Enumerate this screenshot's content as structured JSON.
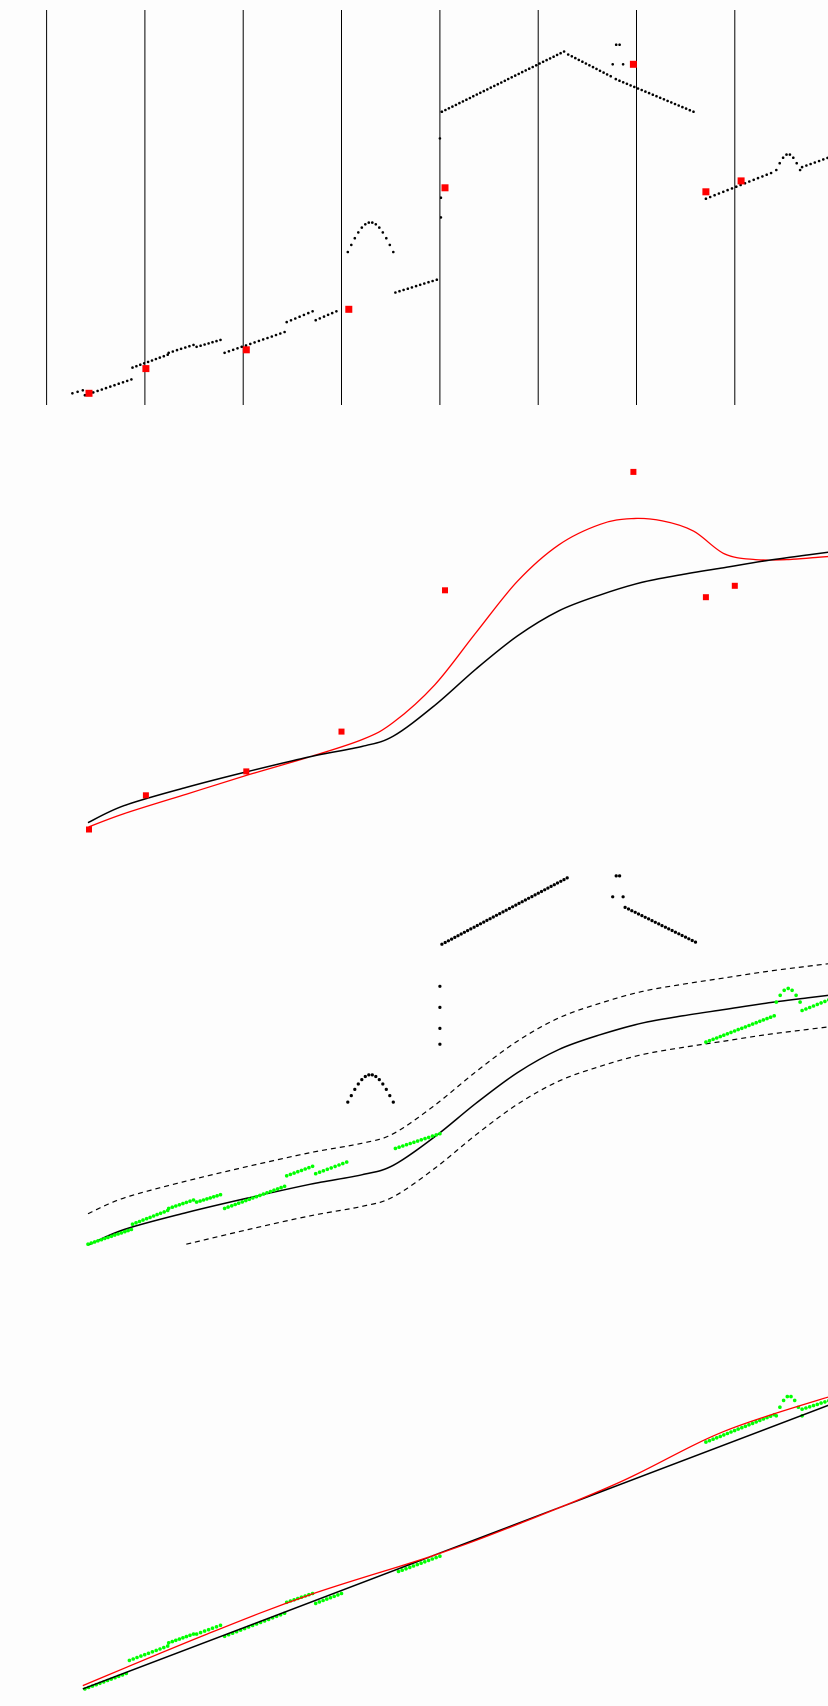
{
  "chart_data": [
    {
      "type": "scatter",
      "xlim": [
        0,
        800
      ],
      "ylim": [
        -10,
        400
      ],
      "title": "",
      "xlabel": "",
      "ylabel": "",
      "grid": "vertical lines",
      "colors": {
        "points": "#000000",
        "knots": "#ff0000",
        "grid": "#000000"
      },
      "vlines": [
        45,
        140,
        235,
        330,
        425,
        520,
        615,
        710,
        805
      ],
      "segments": [
        {
          "x0": 70,
          "y0": 12,
          "x1": 80,
          "y1": 15,
          "n": 3
        },
        {
          "x0": 82,
          "y0": 10,
          "x1": 127,
          "y1": 26,
          "n": 12
        },
        {
          "x0": 128,
          "y0": 38,
          "x1": 162,
          "y1": 51,
          "n": 10
        },
        {
          "x0": 163,
          "y0": 53,
          "x1": 187,
          "y1": 61,
          "n": 7
        },
        {
          "x0": 190,
          "y0": 59,
          "x1": 213,
          "y1": 66,
          "n": 7
        },
        {
          "x0": 217,
          "y0": 53,
          "x1": 275,
          "y1": 74,
          "n": 15
        },
        {
          "x0": 277,
          "y0": 84,
          "x1": 302,
          "y1": 95,
          "n": 7
        },
        {
          "x0": 305,
          "y0": 86,
          "x1": 325,
          "y1": 95,
          "n": 6
        },
        {
          "x0": 382,
          "y0": 114,
          "x1": 422,
          "y1": 127,
          "n": 11
        },
        {
          "x0": 427,
          "y0": 297,
          "x1": 545,
          "y1": 358,
          "n": 36
        },
        {
          "x0": 549,
          "y0": 355,
          "x1": 590,
          "y1": 333,
          "n": 13
        },
        {
          "x0": 595,
          "y0": 330,
          "x1": 670,
          "y1": 297,
          "n": 22
        },
        {
          "x0": 682,
          "y0": 209,
          "x1": 745,
          "y1": 235,
          "n": 16
        },
        {
          "x0": 775,
          "y0": 241,
          "x1": 820,
          "y1": 258,
          "n": 12
        }
      ],
      "bumps": [
        {
          "x0": 336,
          "x1": 380,
          "base": 155,
          "peak": 185,
          "n": 14
        },
        {
          "x0": 750,
          "x1": 773,
          "base": 238,
          "peak": 254,
          "n": 8
        },
        {
          "x0": 592,
          "x1": 602,
          "base": 345,
          "peak": 368,
          "n": 4
        }
      ],
      "extra_points": [
        {
          "x": 425,
          "y": 270
        },
        {
          "x": 426,
          "y": 210
        },
        {
          "x": 426,
          "y": 190
        }
      ],
      "knots": [
        {
          "x": 86,
          "y": 12
        },
        {
          "x": 141,
          "y": 37
        },
        {
          "x": 238,
          "y": 56
        },
        {
          "x": 337,
          "y": 97
        },
        {
          "x": 430,
          "y": 220
        },
        {
          "x": 612,
          "y": 345
        },
        {
          "x": 682,
          "y": 216
        },
        {
          "x": 716,
          "y": 227
        },
        {
          "x": 813,
          "y": 251
        }
      ]
    },
    {
      "type": "line",
      "xlim": [
        0,
        800
      ],
      "ylim": [
        0,
        360
      ],
      "title": "",
      "xlabel": "",
      "ylabel": "",
      "colors": {
        "fit": "#ff0000",
        "smooth": "#000000",
        "knots": "#ff0000"
      },
      "knots": [
        {
          "x": 86,
          "y": 18
        },
        {
          "x": 141,
          "y": 48
        },
        {
          "x": 238,
          "y": 69
        },
        {
          "x": 330,
          "y": 104
        },
        {
          "x": 430,
          "y": 228
        },
        {
          "x": 612,
          "y": 332
        },
        {
          "x": 682,
          "y": 222
        },
        {
          "x": 710,
          "y": 232
        },
        {
          "x": 806,
          "y": 260
        }
      ],
      "series": [
        {
          "x": [
            85,
            120,
            180,
            240,
            300,
            350,
            380,
            420,
            460,
            500,
            540,
            580,
            610,
            640,
            670,
            700,
            730,
            760,
            790,
            805
          ],
          "y": [
            20,
            32,
            49,
            66,
            82,
            97,
            112,
            145,
            191,
            236,
            268,
            286,
            291,
            289,
            280,
            260,
            255,
            255,
            257,
            258
          ]
        },
        {
          "x": [
            85,
            120,
            180,
            240,
            300,
            350,
            380,
            420,
            460,
            500,
            540,
            580,
            620,
            660,
            700,
            740,
            780,
            805
          ],
          "y": [
            24,
            39,
            55,
            69,
            82,
            91,
            100,
            127,
            159,
            188,
            210,
            224,
            235,
            242,
            248,
            254,
            259,
            262
          ]
        }
      ]
    },
    {
      "type": "scatter",
      "xlim": [
        0,
        800
      ],
      "ylim": [
        -10,
        370
      ],
      "title": "",
      "xlabel": "",
      "ylabel": "",
      "colors": {
        "inliers": "#00ff00",
        "outliers": "#000000",
        "curve": "#000000",
        "band": "#000000"
      },
      "band_offset": 30,
      "band_lower_start": 160,
      "curve": {
        "x": [
          85,
          120,
          180,
          240,
          300,
          350,
          380,
          420,
          460,
          500,
          540,
          580,
          620,
          660,
          700,
          740,
          780,
          805
        ],
        "y": [
          4,
          19,
          35,
          49,
          62,
          71,
          80,
          107,
          139,
          168,
          190,
          204,
          215,
          222,
          228,
          234,
          239,
          242
        ]
      },
      "inlier_segments": [
        {
          "x0": 85,
          "y0": 5,
          "x1": 127,
          "y1": 19,
          "n": 14
        },
        {
          "x0": 128,
          "y0": 24,
          "x1": 162,
          "y1": 37,
          "n": 11
        },
        {
          "x0": 163,
          "y0": 39,
          "x1": 187,
          "y1": 47,
          "n": 8
        },
        {
          "x0": 190,
          "y0": 45,
          "x1": 213,
          "y1": 52,
          "n": 8
        },
        {
          "x0": 217,
          "y0": 39,
          "x1": 275,
          "y1": 60,
          "n": 18
        },
        {
          "x0": 277,
          "y0": 70,
          "x1": 302,
          "y1": 79,
          "n": 8
        },
        {
          "x0": 305,
          "y0": 72,
          "x1": 335,
          "y1": 83,
          "n": 9
        },
        {
          "x0": 382,
          "y0": 96,
          "x1": 425,
          "y1": 110,
          "n": 13
        },
        {
          "x0": 682,
          "y0": 197,
          "x1": 748,
          "y1": 222,
          "n": 20
        },
        {
          "x0": 775,
          "y0": 227,
          "x1": 808,
          "y1": 240,
          "n": 10
        }
      ],
      "inlier_bumps": [
        {
          "x0": 750,
          "x1": 773,
          "base": 235,
          "peak": 248,
          "n": 7
        }
      ],
      "outlier_segments": [
        {
          "x0": 427,
          "y0": 290,
          "x1": 548,
          "y1": 353,
          "n": 40
        },
        {
          "x0": 604,
          "y0": 325,
          "x1": 672,
          "y1": 292,
          "n": 22
        }
      ],
      "outlier_bumps": [
        {
          "x0": 336,
          "x1": 380,
          "base": 140,
          "peak": 166,
          "n": 14
        },
        {
          "x0": 592,
          "x1": 602,
          "base": 335,
          "peak": 358,
          "n": 4
        }
      ],
      "outlier_points": [
        {
          "x": 425,
          "y": 250
        },
        {
          "x": 425,
          "y": 230
        },
        {
          "x": 425,
          "y": 210
        },
        {
          "x": 425,
          "y": 195
        }
      ]
    },
    {
      "type": "line",
      "xlim": [
        0,
        800
      ],
      "ylim": [
        0,
        310
      ],
      "title": "",
      "xlabel": "",
      "ylabel": "",
      "colors": {
        "inliers": "#00ff00",
        "line": "#000000",
        "fit": "#ff0000"
      },
      "line": {
        "x": [
          80,
          810
        ],
        "y": [
          1,
          263
        ]
      },
      "fit": {
        "x": [
          80,
          200,
          300,
          420,
          500,
          600,
          700,
          810
        ],
        "y": [
          4,
          51,
          87,
          123,
          151,
          190,
          236,
          270
        ]
      },
      "inlier_segments": [
        {
          "x0": 82,
          "y0": 1,
          "x1": 122,
          "y1": 15,
          "n": 12
        },
        {
          "x0": 125,
          "y0": 27,
          "x1": 162,
          "y1": 40,
          "n": 11
        },
        {
          "x0": 163,
          "y0": 43,
          "x1": 187,
          "y1": 51,
          "n": 8
        },
        {
          "x0": 190,
          "y0": 51,
          "x1": 213,
          "y1": 59,
          "n": 7
        },
        {
          "x0": 217,
          "y0": 49,
          "x1": 275,
          "y1": 70,
          "n": 16
        },
        {
          "x0": 277,
          "y0": 80,
          "x1": 302,
          "y1": 88,
          "n": 8
        },
        {
          "x0": 305,
          "y0": 79,
          "x1": 330,
          "y1": 88,
          "n": 8
        },
        {
          "x0": 385,
          "y0": 108,
          "x1": 425,
          "y1": 122,
          "n": 12
        },
        {
          "x0": 682,
          "y0": 226,
          "x1": 748,
          "y1": 251,
          "n": 20
        },
        {
          "x0": 775,
          "y0": 256,
          "x1": 808,
          "y1": 266,
          "n": 10
        }
      ],
      "inlier_bumps": [
        {
          "x0": 750,
          "x1": 775,
          "base": 250,
          "peak": 268,
          "n": 8
        }
      ]
    }
  ]
}
